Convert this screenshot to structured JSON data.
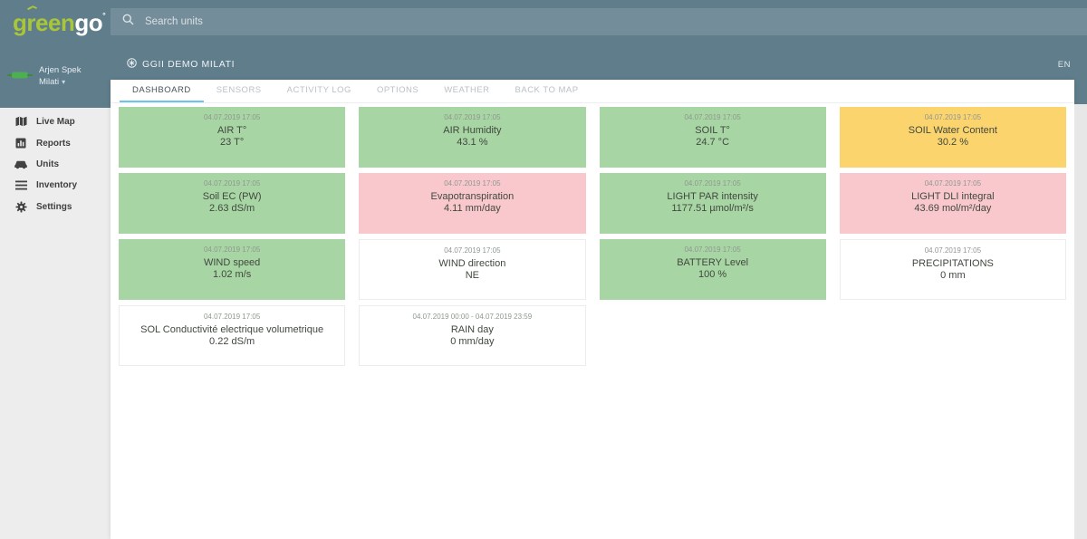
{
  "brand": {
    "p1": "g",
    "r": "r",
    "p2": "een",
    "p3": "go",
    "mark": "°"
  },
  "header": {
    "search_placeholder": "Search units",
    "unit_title": "GGII DEMO MILATI",
    "language": "EN"
  },
  "user": {
    "name": "Arjen Spek",
    "org": "Milati",
    "caret": "▾"
  },
  "sidebar": {
    "items": [
      {
        "label": "Live Map",
        "icon": "map-icon"
      },
      {
        "label": "Reports",
        "icon": "reports-icon"
      },
      {
        "label": "Units",
        "icon": "units-icon"
      },
      {
        "label": "Inventory",
        "icon": "inventory-icon"
      },
      {
        "label": "Settings",
        "icon": "settings-icon"
      }
    ]
  },
  "tabs": [
    {
      "label": "DASHBOARD",
      "active": true
    },
    {
      "label": "SENSORS"
    },
    {
      "label": "ACTIVITY LOG"
    },
    {
      "label": "OPTIONS"
    },
    {
      "label": "WEATHER"
    },
    {
      "label": "BACK TO MAP"
    }
  ],
  "cards": [
    {
      "timestamp": "04.07.2019 17:05",
      "title": "AIR T°",
      "value": "23 T°",
      "status": "green"
    },
    {
      "timestamp": "04.07.2019 17:05",
      "title": "AIR Humidity",
      "value": "43.1 %",
      "status": "green"
    },
    {
      "timestamp": "04.07.2019 17:05",
      "title": "SOIL T°",
      "value": "24.7 °C",
      "status": "green"
    },
    {
      "timestamp": "04.07.2019 17:05",
      "title": "SOIL Water Content",
      "value": "30.2 %",
      "status": "yellow"
    },
    {
      "timestamp": "04.07.2019 17:05",
      "title": "Soil EC (PW)",
      "value": "2.63 dS/m",
      "status": "green"
    },
    {
      "timestamp": "04.07.2019 17:05",
      "title": "Evapotranspiration",
      "value": "4.11 mm/day",
      "status": "red"
    },
    {
      "timestamp": "04.07.2019 17:05",
      "title": "LIGHT PAR intensity",
      "value": "1177.51 µmol/m²/s",
      "status": "green"
    },
    {
      "timestamp": "04.07.2019 17:05",
      "title": "LIGHT DLI integral",
      "value": "43.69 mol/m²/day",
      "status": "red"
    },
    {
      "timestamp": "04.07.2019 17:05",
      "title": "WIND speed",
      "value": "1.02 m/s",
      "status": "green"
    },
    {
      "timestamp": "04.07.2019 17:05",
      "title": "WIND direction",
      "value": "NE",
      "status": "white"
    },
    {
      "timestamp": "04.07.2019 17:05",
      "title": "BATTERY Level",
      "value": "100 %",
      "status": "green"
    },
    {
      "timestamp": "04.07.2019 17:05",
      "title": "PRECIPITATIONS",
      "value": "0 mm",
      "status": "white"
    },
    {
      "timestamp": "04.07.2019 17:05",
      "title": "SOL Conductivité electrique volumetrique",
      "value": "0.22 dS/m",
      "status": "white"
    },
    {
      "timestamp": "04.07.2019 00:00 - 04.07.2019 23:59",
      "title": "RAIN day",
      "value": "0 mm/day",
      "status": "white"
    }
  ],
  "colors": {
    "header": "#607D8B",
    "sensor_ok": "#A8D5A4",
    "sensor_warn": "#FBD46E",
    "sensor_alert": "#F8C8CD",
    "accent": "#6CC3EC",
    "logo_green": "#A8C637"
  }
}
